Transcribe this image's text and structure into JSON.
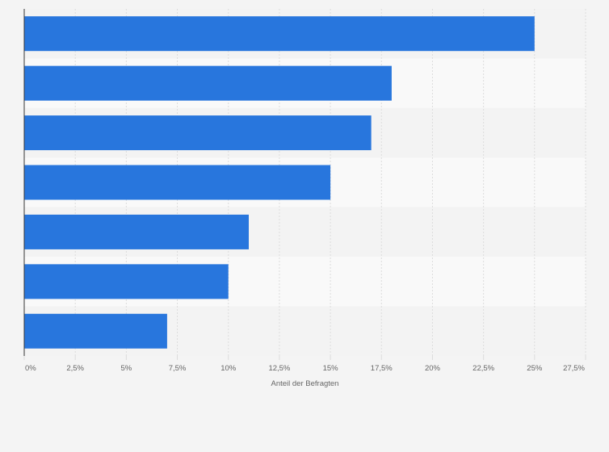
{
  "chart_data": {
    "type": "bar",
    "orientation": "horizontal",
    "categories": [
      "",
      "",
      "",
      "",
      "",
      "",
      ""
    ],
    "values": [
      25,
      18,
      17,
      15,
      11,
      10,
      7
    ],
    "xlabel": "Anteil der Befragten",
    "ylabel": "",
    "xlim": [
      0,
      27.5
    ],
    "x_ticks": [
      0,
      2.5,
      5,
      7.5,
      10,
      12.5,
      15,
      17.5,
      20,
      22.5,
      25,
      27.5
    ],
    "x_tick_labels": [
      "0%",
      "2,5%",
      "5%",
      "7,5%",
      "10%",
      "12,5%",
      "15%",
      "17,5%",
      "20%",
      "22,5%",
      "25%",
      "27,5%"
    ],
    "grid": true,
    "legend": "none",
    "colors": {
      "bar": "#2876dd",
      "band_light": "#f9f9f9",
      "band_dark": "#f3f3f3",
      "grid": "#dcdcdc",
      "axis": "#333333",
      "text": "#666666",
      "background": "#f4f4f4"
    }
  }
}
